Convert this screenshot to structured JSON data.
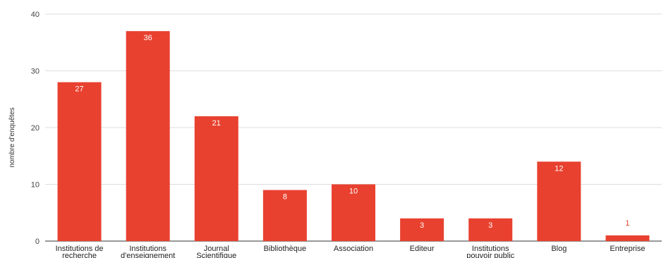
{
  "chart_data": {
    "type": "bar",
    "ylabel": "nombre d'enquêtes",
    "ylim": [
      0,
      40
    ],
    "yticks": [
      "0",
      "10",
      "20",
      "30",
      "40"
    ],
    "grid": true,
    "legend": "none",
    "colors": {
      "bar": "#e8412f",
      "label_inside": "#ffffff",
      "label_outside": "#e8412f",
      "grid": "#dddddd"
    },
    "categories": [
      [
        "Institutions de",
        "recherche"
      ],
      [
        "Institutions",
        "d'enseignement"
      ],
      [
        "Journal",
        "Scientifique"
      ],
      [
        "Bibliothèque"
      ],
      [
        "Association"
      ],
      [
        "Editeur"
      ],
      [
        "Institutions",
        "pouvoir public"
      ],
      [
        "Blog"
      ],
      [
        "Entreprise"
      ]
    ],
    "bar_heights": [
      28,
      37,
      22,
      9,
      10,
      4,
      4,
      14,
      1
    ],
    "data_labels": [
      "27",
      "36",
      "21",
      "8",
      "10",
      "3",
      "3",
      "12",
      "1"
    ]
  }
}
